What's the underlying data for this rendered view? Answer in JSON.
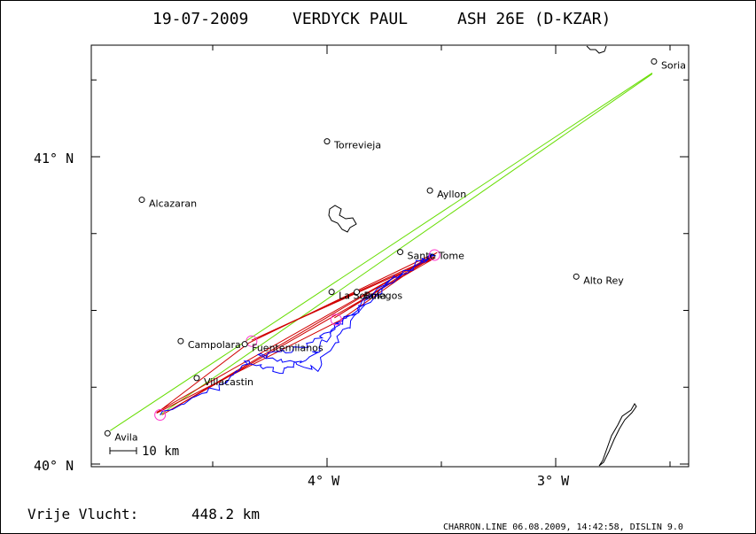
{
  "header": {
    "date": "19-07-2009",
    "pilot": "VERDYCK PAUL",
    "glider": "ASH 26E (D-KZAR)"
  },
  "axes": {
    "y_ticks": [
      {
        "label": "41° N",
        "lat": 41.0
      },
      {
        "label": "40° N",
        "lat": 40.0
      }
    ],
    "x_ticks": [
      {
        "label": "4° W",
        "lon": -4.0
      },
      {
        "label": "3° W",
        "lon": -3.0
      }
    ]
  },
  "scale_bar": {
    "label": "10 km"
  },
  "places": [
    {
      "name": "Soria",
      "lat": 41.31,
      "lon": -2.57
    },
    {
      "name": "Torrevieja",
      "lat": 41.05,
      "lon": -4.0
    },
    {
      "name": "Ayllon",
      "lat": 40.89,
      "lon": -3.55
    },
    {
      "name": "Alcazaran",
      "lat": 40.86,
      "lon": -4.81
    },
    {
      "name": "Santo Tome",
      "lat": 40.69,
      "lon": -3.68
    },
    {
      "name": "Alto Rey",
      "lat": 40.61,
      "lon": -2.91
    },
    {
      "name": "La Solana",
      "lat": 40.56,
      "lon": -3.98
    },
    {
      "name": "Bolegos",
      "lat": 40.56,
      "lon": -3.87
    },
    {
      "name": "Campolara",
      "lat": 40.4,
      "lon": -4.64
    },
    {
      "name": "Fuentemilanos",
      "lat": 40.39,
      "lon": -4.36
    },
    {
      "name": "Villacastin",
      "lat": 40.28,
      "lon": -4.57
    },
    {
      "name": "Avila",
      "lat": 40.1,
      "lon": -4.96
    }
  ],
  "task": {
    "turnpoints": [
      {
        "lat": 40.16,
        "lon": -4.73
      },
      {
        "lat": 40.68,
        "lon": -3.53
      },
      {
        "lat": 40.47,
        "lon": -3.96
      },
      {
        "lat": 40.4,
        "lon": -4.33
      }
    ]
  },
  "footer": {
    "distance_label": "Vrije Vlucht:",
    "distance_value": "448.2 km",
    "credit": "CHARRON.LINE 06.08.2009, 14:42:58, DISLIN 9.0"
  },
  "colors": {
    "track": "#0000ff",
    "legs": "#d00000",
    "ext": "#66dd00",
    "turnpoint": "#ff33cc"
  }
}
